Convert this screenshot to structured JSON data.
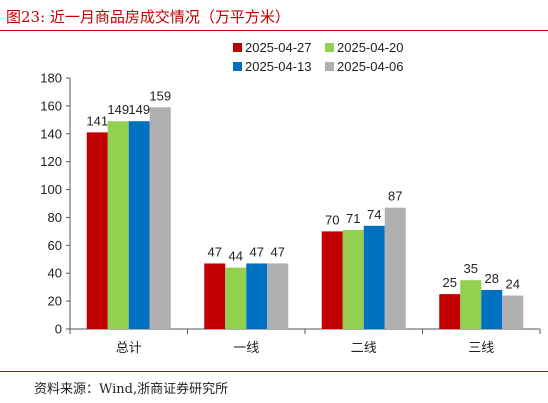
{
  "figure": {
    "title": "图23:  近一月商品房成交情况（万平方米）",
    "source": "资料来源：Wind,浙商证券研究所"
  },
  "colors": {
    "accent": "#c00000",
    "series": [
      "#c00000",
      "#92d050",
      "#0070c0",
      "#b0b0b0"
    ]
  },
  "chart_data": {
    "type": "bar",
    "categories": [
      "总计",
      "一线",
      "二线",
      "三线"
    ],
    "series": [
      {
        "name": "2025-04-27",
        "values": [
          141,
          47,
          70,
          25
        ]
      },
      {
        "name": "2025-04-20",
        "values": [
          149,
          44,
          71,
          35
        ]
      },
      {
        "name": "2025-04-13",
        "values": [
          149,
          47,
          74,
          28
        ]
      },
      {
        "name": "2025-04-06",
        "values": [
          159,
          47,
          87,
          24
        ]
      }
    ],
    "ylim": [
      0,
      180
    ],
    "yticks": [
      0,
      20,
      40,
      60,
      80,
      100,
      120,
      140,
      160,
      180
    ],
    "grid": false,
    "legend": "top",
    "data_labels": true
  }
}
